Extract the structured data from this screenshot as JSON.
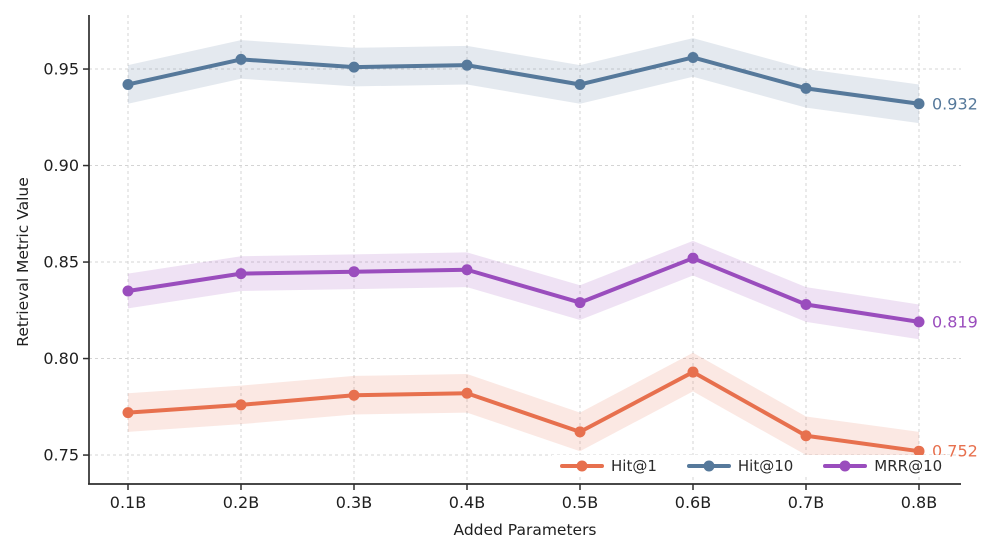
{
  "chart_data": {
    "type": "line",
    "title": "",
    "xlabel": "Added Parameters",
    "ylabel": "Retrieval Metric Value",
    "categories": [
      "0.1B",
      "0.2B",
      "0.3B",
      "0.4B",
      "0.5B",
      "0.6B",
      "0.7B",
      "0.8B"
    ],
    "yticks": [
      0.75,
      0.8,
      0.85,
      0.9,
      0.95
    ],
    "ytick_labels": [
      "0.75",
      "0.80",
      "0.85",
      "0.90",
      "0.95"
    ],
    "ylim": [
      0.735,
      0.978
    ],
    "grid": true,
    "grid_style": "dashed",
    "legend_position": "lower-right-inside",
    "series": [
      {
        "name": "Hit@1",
        "color": "#E7704E",
        "band_halfwidth": 0.01,
        "values": [
          0.772,
          0.776,
          0.781,
          0.782,
          0.762,
          0.793,
          0.76,
          0.752
        ],
        "end_label": "0.752"
      },
      {
        "name": "Hit@10",
        "color": "#56799B",
        "band_halfwidth": 0.01,
        "values": [
          0.942,
          0.955,
          0.951,
          0.952,
          0.942,
          0.956,
          0.94,
          0.932
        ],
        "end_label": "0.932"
      },
      {
        "name": "MRR@10",
        "color": "#9A4DBD",
        "band_halfwidth": 0.009,
        "values": [
          0.835,
          0.844,
          0.845,
          0.846,
          0.829,
          0.852,
          0.828,
          0.819
        ],
        "end_label": "0.819"
      }
    ],
    "colors": {
      "grid": "#d4d4d4",
      "spine": "#2e2e2e",
      "tick_label": "#202020"
    }
  }
}
